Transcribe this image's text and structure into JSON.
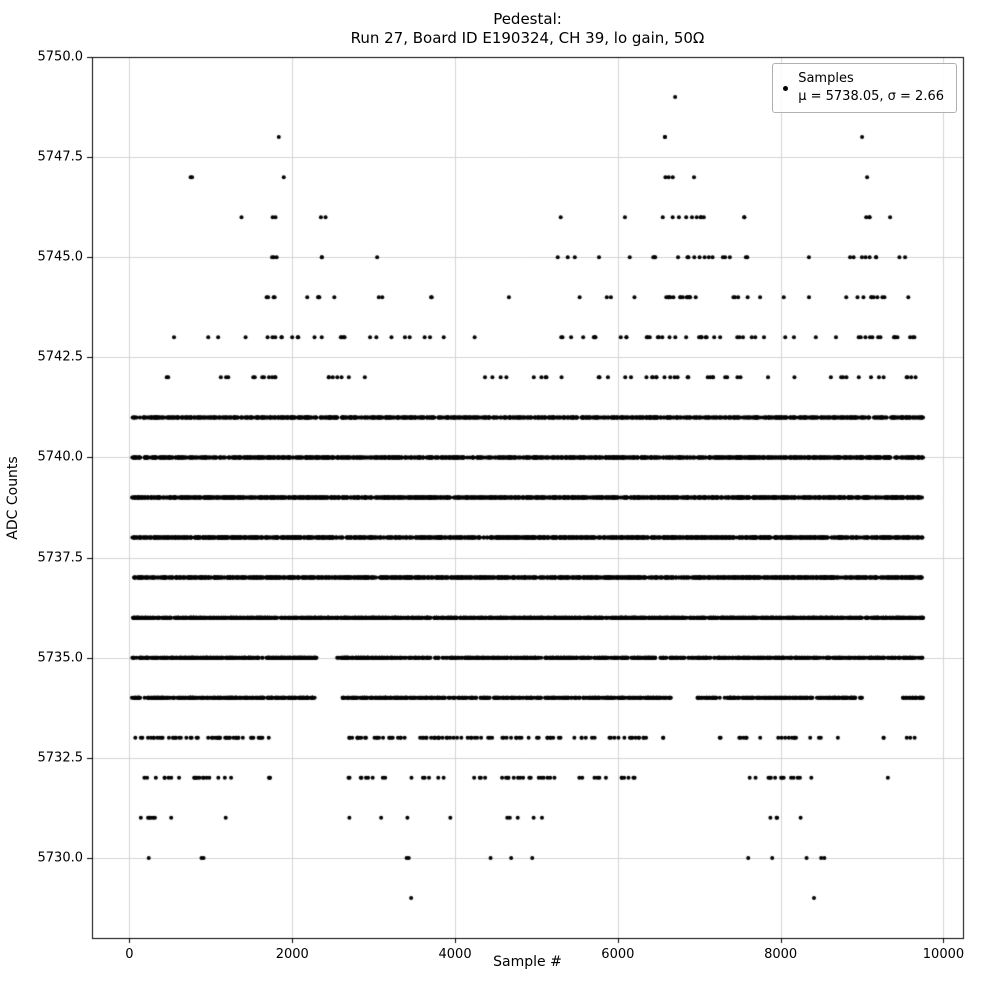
{
  "figure": {
    "title_line1": "Pedestal:",
    "title_line2": "Run 27, Board ID E190324, CH 39, lo gain, 50Ω",
    "xlabel": "Sample #",
    "ylabel": "ADC Counts",
    "legend": {
      "label": "Samples",
      "stats": "μ = 5738.05, σ = 2.66"
    }
  },
  "chart_data": {
    "type": "scatter",
    "title": "Pedestal: Run 27, Board ID E190324, CH 39, lo gain, 50Ω",
    "xlabel": "Sample #",
    "ylabel": "ADC Counts",
    "legend_entries": [
      "Samples",
      "μ = 5738.05, σ = 2.66"
    ],
    "mean": 5738.05,
    "sigma": 2.66,
    "marker_color": "#000000",
    "marker_radius": 2,
    "grid": true,
    "grid_color": "#d4d4d4",
    "spine_color": "#000000",
    "xlim": [
      -460,
      10240
    ],
    "ylim": [
      5728.0,
      5750.0
    ],
    "xticks": [
      0,
      2000,
      4000,
      6000,
      8000,
      10000
    ],
    "xtick_labels": [
      "0",
      "2000",
      "4000",
      "6000",
      "8000",
      "10000"
    ],
    "yticks": [
      5730.0,
      5732.5,
      5735.0,
      5737.5,
      5740.0,
      5742.5,
      5745.0,
      5747.5,
      5750.0
    ],
    "ytick_labels": [
      "5730.0",
      "5732.5",
      "5735.0",
      "5737.5",
      "5740.0",
      "5742.5",
      "5745.0",
      "5747.5",
      "5750.0"
    ],
    "x_range_of_samples": [
      30,
      9750
    ],
    "adc_levels_with_x_segments": "each segment = [x_start, x_end, point_count]",
    "levels": [
      {
        "y": 5729,
        "segments": [
          [
            3430,
            3480,
            1
          ],
          [
            8400,
            8450,
            1
          ]
        ]
      },
      {
        "y": 5730,
        "segments": [
          [
            220,
            260,
            1
          ],
          [
            870,
            990,
            2
          ],
          [
            3390,
            3490,
            2
          ],
          [
            4430,
            4470,
            1
          ],
          [
            4680,
            4720,
            1
          ],
          [
            4930,
            4970,
            1
          ],
          [
            7580,
            7620,
            1
          ],
          [
            7880,
            7920,
            1
          ],
          [
            8280,
            8320,
            1
          ],
          [
            8490,
            8570,
            2
          ]
        ]
      },
      {
        "y": 5731,
        "segments": [
          [
            60,
            550,
            7
          ],
          [
            1180,
            1220,
            1
          ],
          [
            2690,
            2730,
            1
          ],
          [
            3080,
            3120,
            1
          ],
          [
            3380,
            3420,
            1
          ],
          [
            3930,
            3970,
            1
          ],
          [
            4440,
            4800,
            3
          ],
          [
            4940,
            5100,
            2
          ],
          [
            7840,
            8010,
            3
          ],
          [
            8230,
            8270,
            1
          ]
        ]
      },
      {
        "y": 5732,
        "segments": [
          [
            150,
            1300,
            20
          ],
          [
            1600,
            1760,
            3
          ],
          [
            2690,
            3900,
            15
          ],
          [
            4080,
            5300,
            20
          ],
          [
            5380,
            6300,
            12
          ],
          [
            7490,
            8400,
            14
          ],
          [
            9300,
            9340,
            1
          ]
        ]
      },
      {
        "y": 5733,
        "segments": [
          [
            50,
            1750,
            52
          ],
          [
            2640,
            5300,
            70
          ],
          [
            5400,
            6350,
            20
          ],
          [
            6540,
            6580,
            2
          ],
          [
            7230,
            7280,
            2
          ],
          [
            7450,
            8750,
            18
          ],
          [
            9240,
            9280,
            2
          ],
          [
            9540,
            9700,
            3
          ]
        ]
      },
      {
        "y": 5734,
        "segments": [
          [
            30,
            2280,
            300
          ],
          [
            2600,
            6650,
            430
          ],
          [
            6950,
            9000,
            220
          ],
          [
            9500,
            9750,
            28
          ]
        ]
      },
      {
        "y": 5735,
        "segments": [
          [
            30,
            2300,
            330
          ],
          [
            2550,
            9750,
            830
          ]
        ]
      },
      {
        "y": 5736,
        "segments": [
          [
            30,
            9750,
            1550
          ]
        ]
      },
      {
        "y": 5737,
        "segments": [
          [
            30,
            9750,
            1600
          ]
        ]
      },
      {
        "y": 5738,
        "segments": [
          [
            30,
            9750,
            1650
          ]
        ]
      },
      {
        "y": 5739,
        "segments": [
          [
            30,
            9750,
            1650
          ]
        ]
      },
      {
        "y": 5740,
        "segments": [
          [
            30,
            9750,
            1420
          ]
        ]
      },
      {
        "y": 5741,
        "segments": [
          [
            30,
            9750,
            1150
          ]
        ]
      },
      {
        "y": 5742,
        "segments": [
          [
            380,
            480,
            2
          ],
          [
            1080,
            1250,
            3
          ],
          [
            1450,
            2000,
            8
          ],
          [
            2250,
            2700,
            6
          ],
          [
            2890,
            2930,
            1
          ],
          [
            4350,
            4700,
            4
          ],
          [
            4900,
            5500,
            5
          ],
          [
            5750,
            6100,
            4
          ],
          [
            6150,
            6900,
            12
          ],
          [
            6950,
            7600,
            8
          ],
          [
            7830,
            7870,
            1
          ],
          [
            8130,
            8170,
            1
          ],
          [
            8400,
            9700,
            12
          ]
        ]
      },
      {
        "y": 5743,
        "segments": [
          [
            540,
            580,
            1
          ],
          [
            950,
            1100,
            2
          ],
          [
            1400,
            2100,
            9
          ],
          [
            2250,
            2700,
            6
          ],
          [
            2900,
            3500,
            5
          ],
          [
            3600,
            3900,
            3
          ],
          [
            4230,
            4270,
            1
          ],
          [
            5100,
            5900,
            8
          ],
          [
            6000,
            6400,
            6
          ],
          [
            6450,
            7300,
            14
          ],
          [
            7400,
            7900,
            6
          ],
          [
            8050,
            8200,
            2
          ],
          [
            8400,
            9700,
            16
          ]
        ]
      },
      {
        "y": 5744,
        "segments": [
          [
            1650,
            1950,
            4
          ],
          [
            2150,
            2600,
            5
          ],
          [
            3050,
            3150,
            2
          ],
          [
            3650,
            3750,
            2
          ],
          [
            4630,
            4670,
            1
          ],
          [
            5530,
            5570,
            1
          ],
          [
            5850,
            6000,
            2
          ],
          [
            6180,
            6220,
            1
          ],
          [
            6550,
            7200,
            14
          ],
          [
            7350,
            7800,
            5
          ],
          [
            8030,
            8070,
            1
          ],
          [
            8330,
            8370,
            1
          ],
          [
            8750,
            9400,
            9
          ],
          [
            9530,
            9570,
            1
          ]
        ]
      },
      {
        "y": 5745,
        "segments": [
          [
            1700,
            1850,
            3
          ],
          [
            2350,
            2450,
            2
          ],
          [
            3030,
            3070,
            1
          ],
          [
            5250,
            5500,
            3
          ],
          [
            5730,
            5770,
            1
          ],
          [
            6130,
            6170,
            1
          ],
          [
            6350,
            6500,
            3
          ],
          [
            6600,
            7400,
            11
          ],
          [
            7500,
            7700,
            2
          ],
          [
            8330,
            8370,
            1
          ],
          [
            8850,
            9300,
            7
          ],
          [
            9450,
            9600,
            2
          ]
        ]
      },
      {
        "y": 5746,
        "segments": [
          [
            1340,
            1380,
            1
          ],
          [
            1740,
            1810,
            2
          ],
          [
            2350,
            2500,
            2
          ],
          [
            5280,
            5320,
            1
          ],
          [
            6080,
            6120,
            1
          ],
          [
            6500,
            7100,
            9
          ],
          [
            7450,
            7600,
            2
          ],
          [
            8950,
            9100,
            3
          ],
          [
            9330,
            9370,
            1
          ]
        ]
      },
      {
        "y": 5747,
        "segments": [
          [
            710,
            800,
            2
          ],
          [
            1890,
            1930,
            1
          ],
          [
            6540,
            6700,
            3
          ],
          [
            6930,
            6970,
            1
          ],
          [
            9040,
            9080,
            1
          ]
        ]
      },
      {
        "y": 5748,
        "segments": [
          [
            1830,
            1870,
            1
          ],
          [
            6540,
            6650,
            2
          ],
          [
            8980,
            9020,
            1
          ]
        ]
      },
      {
        "y": 5749,
        "segments": [
          [
            6690,
            6730,
            1
          ]
        ]
      }
    ]
  }
}
